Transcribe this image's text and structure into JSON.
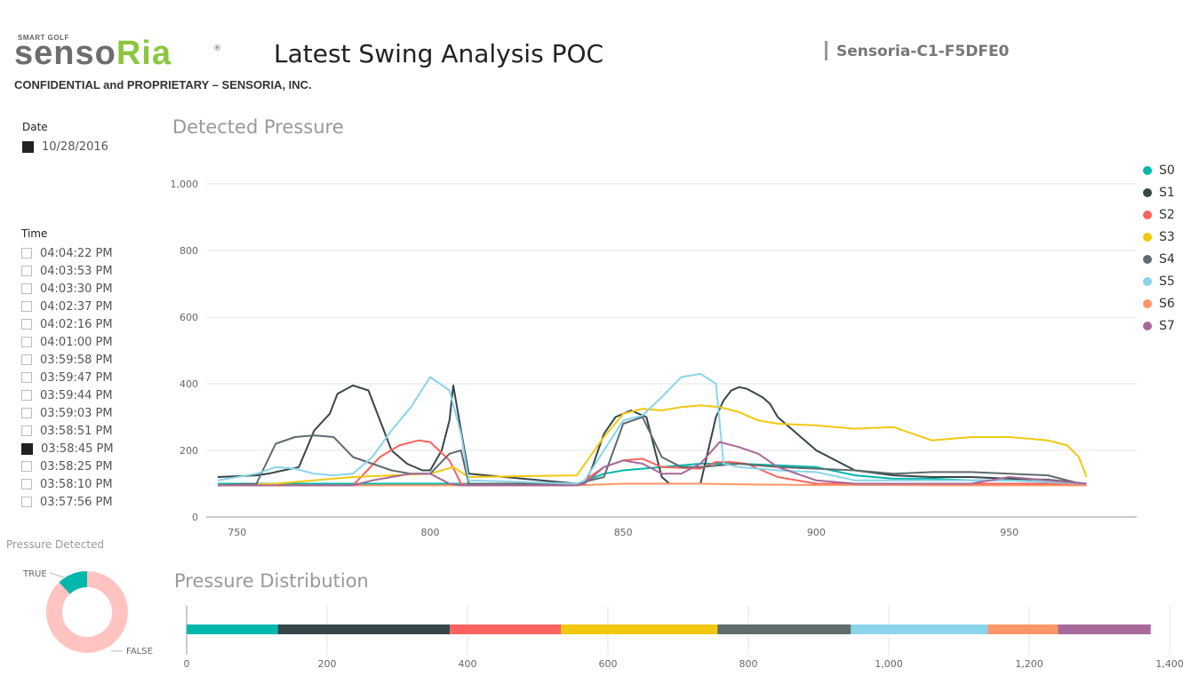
{
  "header": {
    "logo_tagline": "SMART GOLF",
    "logo_part1": "senso",
    "logo_part2": "Ria",
    "logo_reg": "®",
    "confidential": "CONFIDENTIAL and PROPRIETARY – SENSORIA, INC.",
    "title": "Latest Swing Analysis POC",
    "device": "Sensoria-C1-F5DFE0"
  },
  "date_slicer": {
    "title": "Date",
    "items": [
      {
        "label": "10/28/2016",
        "checked": true
      }
    ]
  },
  "time_slicer": {
    "title": "Time",
    "items": [
      {
        "label": "04:04:22 PM",
        "checked": false
      },
      {
        "label": "04:03:53 PM",
        "checked": false
      },
      {
        "label": "04:03:30 PM",
        "checked": false
      },
      {
        "label": "04:02:37 PM",
        "checked": false
      },
      {
        "label": "04:02:16 PM",
        "checked": false
      },
      {
        "label": "04:01:00 PM",
        "checked": false
      },
      {
        "label": "03:59:58 PM",
        "checked": false
      },
      {
        "label": "03:59:47 PM",
        "checked": false
      },
      {
        "label": "03:59:44 PM",
        "checked": false
      },
      {
        "label": "03:59:03 PM",
        "checked": false
      },
      {
        "label": "03:58:51 PM",
        "checked": false
      },
      {
        "label": "03:58:45 PM",
        "checked": true
      },
      {
        "label": "03:58:25 PM",
        "checked": false
      },
      {
        "label": "03:58:10 PM",
        "checked": false
      },
      {
        "label": "03:57:56 PM",
        "checked": false
      }
    ]
  },
  "colors": {
    "S0": "#01b8aa",
    "S1": "#374649",
    "S2": "#fd625e",
    "S3": "#f2c80f",
    "S4": "#5f6b6d",
    "S5": "#8ad4eb",
    "S6": "#fe9666",
    "S7": "#a66999",
    "donut_true": "#01b8aa",
    "donut_false": "#ffc4c2"
  },
  "chart_data": [
    {
      "type": "line",
      "title": "Detected Pressure",
      "xlim": [
        742,
        983
      ],
      "ylim": [
        0,
        1000
      ],
      "x_ticks": [
        750,
        800,
        850,
        900,
        950
      ],
      "y_ticks": [
        0,
        200,
        400,
        600,
        800,
        1000
      ],
      "y_tick_labels": [
        "0",
        "200",
        "400",
        "600",
        "800",
        "1,000"
      ],
      "grid": true,
      "legend_position": "right",
      "series": [
        {
          "name": "S0",
          "x": [
            745,
            760,
            780,
            800,
            810,
            838,
            845,
            850,
            860,
            870,
            880,
            890,
            900,
            910,
            920,
            930,
            940,
            950,
            960,
            970
          ],
          "y": [
            100,
            100,
            100,
            100,
            100,
            100,
            130,
            140,
            150,
            160,
            160,
            155,
            150,
            125,
            115,
            115,
            110,
            110,
            105,
            95
          ]
        },
        {
          "name": "S1",
          "x": [
            745,
            755,
            758,
            762,
            766,
            770,
            774,
            776,
            780,
            784,
            786,
            790,
            794,
            798,
            800,
            803,
            805,
            806,
            808,
            810,
            838,
            840,
            842,
            845,
            848,
            852,
            856,
            860,
            862,
            870,
            874,
            876,
            878,
            880,
            882,
            886,
            888,
            890,
            900,
            910,
            920,
            930,
            940,
            950,
            960,
            970
          ],
          "y": [
            120,
            125,
            130,
            140,
            150,
            260,
            310,
            370,
            395,
            380,
            320,
            200,
            160,
            140,
            140,
            200,
            290,
            395,
            260,
            130,
            100,
            100,
            150,
            250,
            300,
            320,
            300,
            120,
            100,
            100,
            300,
            350,
            380,
            390,
            385,
            360,
            340,
            300,
            200,
            140,
            125,
            120,
            120,
            115,
            112,
            100
          ]
        },
        {
          "name": "S2",
          "x": [
            745,
            780,
            787,
            792,
            797,
            800,
            805,
            808,
            810,
            838,
            840,
            845,
            850,
            855,
            860,
            870,
            874,
            878,
            882,
            886,
            890,
            900,
            910,
            920,
            930,
            940,
            950,
            960,
            970
          ],
          "y": [
            95,
            95,
            180,
            215,
            230,
            225,
            170,
            100,
            95,
            95,
            110,
            150,
            170,
            175,
            150,
            145,
            165,
            165,
            160,
            140,
            120,
            100,
            100,
            100,
            100,
            100,
            100,
            100,
            95
          ]
        },
        {
          "name": "S3",
          "x": [
            745,
            760,
            780,
            800,
            806,
            810,
            838,
            841,
            845,
            850,
            855,
            860,
            865,
            870,
            875,
            880,
            885,
            890,
            900,
            910,
            920,
            930,
            940,
            950,
            960,
            965,
            968,
            970
          ],
          "y": [
            95,
            100,
            120,
            130,
            150,
            120,
            125,
            175,
            240,
            310,
            325,
            320,
            330,
            335,
            330,
            315,
            290,
            280,
            275,
            265,
            270,
            230,
            240,
            240,
            230,
            215,
            180,
            120
          ]
        },
        {
          "name": "S4",
          "x": [
            745,
            755,
            760,
            765,
            770,
            775,
            780,
            785,
            790,
            795,
            800,
            805,
            808,
            810,
            838,
            845,
            850,
            855,
            860,
            865,
            870,
            875,
            880,
            885,
            890,
            900,
            910,
            920,
            930,
            940,
            950,
            960,
            970
          ],
          "y": [
            95,
            100,
            220,
            240,
            245,
            240,
            180,
            160,
            140,
            130,
            130,
            190,
            200,
            100,
            100,
            120,
            280,
            300,
            180,
            150,
            150,
            155,
            160,
            155,
            150,
            145,
            140,
            130,
            135,
            135,
            130,
            125,
            95
          ]
        },
        {
          "name": "S5",
          "x": [
            745,
            755,
            760,
            765,
            770,
            775,
            780,
            785,
            790,
            795,
            800,
            805,
            808,
            810,
            838,
            840,
            845,
            850,
            855,
            860,
            865,
            870,
            874,
            876,
            880,
            885,
            890,
            900,
            910,
            920,
            930,
            940,
            950,
            960,
            970
          ],
          "y": [
            110,
            130,
            150,
            145,
            130,
            125,
            130,
            180,
            260,
            330,
            420,
            380,
            250,
            110,
            100,
            110,
            200,
            290,
            305,
            360,
            420,
            430,
            400,
            160,
            150,
            145,
            140,
            135,
            110,
            110,
            110,
            110,
            110,
            105,
            100
          ]
        },
        {
          "name": "S6",
          "x": [
            745,
            800,
            810,
            838,
            850,
            860,
            870,
            880,
            890,
            900,
            910,
            920,
            930,
            940,
            950,
            960,
            970
          ],
          "y": [
            95,
            95,
            95,
            95,
            100,
            100,
            100,
            98,
            97,
            96,
            96,
            96,
            95,
            95,
            95,
            95,
            95
          ]
        },
        {
          "name": "S7",
          "x": [
            745,
            780,
            785,
            790,
            795,
            800,
            805,
            808,
            810,
            838,
            840,
            845,
            850,
            855,
            860,
            865,
            870,
            875,
            880,
            885,
            890,
            900,
            910,
            920,
            930,
            940,
            950,
            960,
            970
          ],
          "y": [
            95,
            95,
            110,
            120,
            130,
            130,
            100,
            95,
            95,
            95,
            100,
            150,
            170,
            160,
            130,
            130,
            160,
            225,
            210,
            190,
            150,
            110,
            100,
            100,
            100,
            100,
            120,
            110,
            100
          ]
        }
      ]
    },
    {
      "type": "bar",
      "orientation": "horizontal-stacked",
      "title": "Pressure Distribution",
      "xlim": [
        0,
        1400
      ],
      "x_ticks": [
        0,
        200,
        400,
        600,
        800,
        1000,
        1200,
        1400
      ],
      "x_tick_labels": [
        "0",
        "200",
        "400",
        "600",
        "800",
        "1,000",
        "1,200",
        "1,400"
      ],
      "grid": true,
      "series": [
        {
          "name": "S0",
          "values": [
            130
          ]
        },
        {
          "name": "S1",
          "values": [
            245
          ]
        },
        {
          "name": "S2",
          "values": [
            158
          ]
        },
        {
          "name": "S3",
          "values": [
            223
          ]
        },
        {
          "name": "S4",
          "values": [
            190
          ]
        },
        {
          "name": "S5",
          "values": [
            195
          ]
        },
        {
          "name": "S6",
          "values": [
            100
          ]
        },
        {
          "name": "S7",
          "values": [
            132
          ]
        }
      ]
    },
    {
      "type": "pie",
      "title": "Pressure Detected",
      "categories": [
        "TRUE",
        "FALSE"
      ],
      "values": [
        12,
        88
      ]
    }
  ]
}
